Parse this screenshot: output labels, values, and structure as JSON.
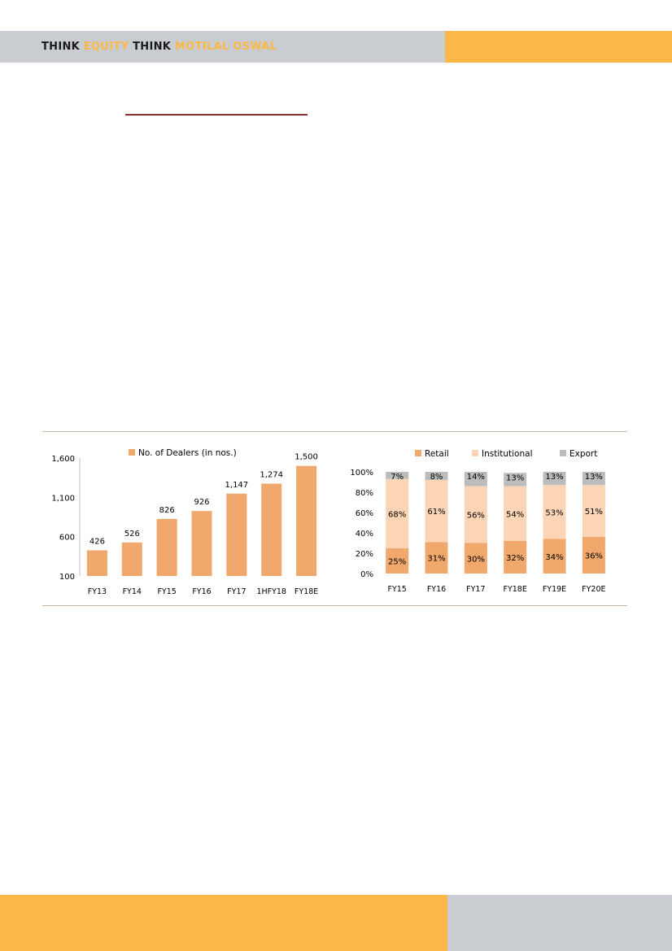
{
  "header": {
    "brand_1": "THINK",
    "brand_2": "EQUITY",
    "brand_3": "THINK",
    "brand_4": "MOTILAL OSWAL"
  },
  "colors": {
    "header_grey": "#c9ccd0",
    "header_orange": "#fbb846",
    "retail": "#f0a86c",
    "institutional": "#fbd5b5",
    "export": "#bcbcbc"
  },
  "chart_data": [
    {
      "type": "bar",
      "legend": "No. of Dealers (in nos.)",
      "categories": [
        "FY13",
        "FY14",
        "FY15",
        "FY16",
        "FY17",
        "1HFY18",
        "FY18E"
      ],
      "values": [
        426,
        526,
        826,
        926,
        1147,
        1274,
        1500
      ],
      "value_labels": [
        "426",
        "526",
        "826",
        "926",
        "1,147",
        "1,274",
        "1,500"
      ],
      "yticks": [
        "100",
        "600",
        "1,100",
        "1,600"
      ],
      "ylim": [
        100,
        1600
      ],
      "legend_position": "top"
    },
    {
      "type": "bar",
      "stacked": true,
      "categories": [
        "FY15",
        "FY16",
        "FY17",
        "FY18E",
        "FY19E",
        "FY20E"
      ],
      "series": [
        {
          "name": "Retail",
          "values": [
            25,
            31,
            30,
            32,
            34,
            36
          ]
        },
        {
          "name": "Institutional",
          "values": [
            68,
            61,
            56,
            54,
            53,
            51
          ]
        },
        {
          "name": "Export",
          "values": [
            7,
            8,
            14,
            13,
            13,
            13
          ]
        }
      ],
      "yticks": [
        "0%",
        "20%",
        "40%",
        "60%",
        "80%",
        "100%"
      ],
      "ylim": [
        0,
        100
      ],
      "legend_position": "top"
    }
  ]
}
